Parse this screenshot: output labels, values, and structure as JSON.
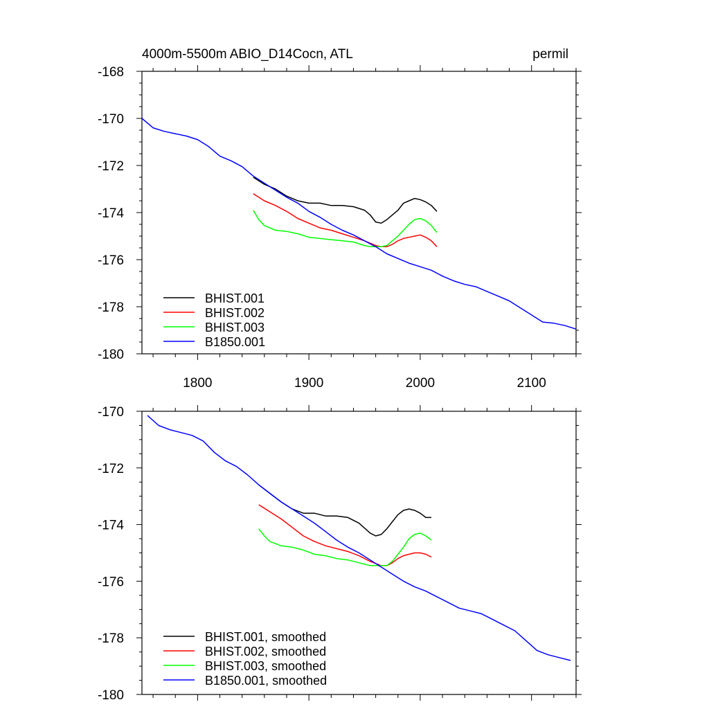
{
  "figure": {
    "title_left": "4000m-5500m ABIO_D14Cocn, ATL",
    "title_right": "permil"
  },
  "chart_data": [
    {
      "type": "line",
      "title": "4000m-5500m ABIO_D14Cocn, ATL",
      "units": "permil",
      "xlim": [
        1750,
        2140
      ],
      "ylim": [
        -180,
        -168
      ],
      "xticks": [
        1800,
        1900,
        2000,
        2100
      ],
      "xtick_labels": [
        "1800",
        "1900",
        "2000",
        "2100"
      ],
      "yticks": [
        -180,
        -178,
        -176,
        -174,
        -172,
        -170,
        -168
      ],
      "ytick_labels": [
        "-180",
        "-178",
        "-176",
        "-174",
        "-172",
        "-170",
        "-168"
      ],
      "legend_location": "bottom-left",
      "series": [
        {
          "name": "BHIST.001",
          "color": "#000000",
          "x": [
            1850,
            1860,
            1870,
            1880,
            1890,
            1900,
            1910,
            1920,
            1930,
            1940,
            1950,
            1955,
            1960,
            1965,
            1970,
            1975,
            1980,
            1985,
            1990,
            1995,
            2000,
            2005,
            2010,
            2015
          ],
          "y": [
            -172.5,
            -172.8,
            -173.0,
            -173.3,
            -173.5,
            -173.6,
            -173.6,
            -173.7,
            -173.7,
            -173.75,
            -173.9,
            -174.1,
            -174.4,
            -174.45,
            -174.3,
            -174.1,
            -173.9,
            -173.6,
            -173.5,
            -173.4,
            -173.45,
            -173.55,
            -173.7,
            -173.95
          ]
        },
        {
          "name": "BHIST.002",
          "color": "#ff0000",
          "x": [
            1850,
            1860,
            1870,
            1880,
            1890,
            1900,
            1910,
            1920,
            1930,
            1940,
            1950,
            1955,
            1960,
            1965,
            1970,
            1975,
            1980,
            1985,
            1990,
            1995,
            2000,
            2005,
            2010,
            2015
          ],
          "y": [
            -173.2,
            -173.5,
            -173.7,
            -173.95,
            -174.25,
            -174.45,
            -174.65,
            -174.75,
            -174.9,
            -175.05,
            -175.2,
            -175.3,
            -175.4,
            -175.45,
            -175.45,
            -175.35,
            -175.2,
            -175.1,
            -175.05,
            -175.0,
            -174.95,
            -175.05,
            -175.2,
            -175.45
          ]
        },
        {
          "name": "BHIST.003",
          "color": "#00ff00",
          "x": [
            1850,
            1855,
            1860,
            1870,
            1880,
            1890,
            1900,
            1910,
            1920,
            1930,
            1940,
            1950,
            1955,
            1960,
            1965,
            1970,
            1975,
            1980,
            1985,
            1990,
            1995,
            2000,
            2005,
            2010,
            2015
          ],
          "y": [
            -173.9,
            -174.3,
            -174.55,
            -174.75,
            -174.8,
            -174.9,
            -175.05,
            -175.1,
            -175.15,
            -175.2,
            -175.25,
            -175.4,
            -175.45,
            -175.45,
            -175.45,
            -175.4,
            -175.2,
            -175.0,
            -174.75,
            -174.5,
            -174.3,
            -174.25,
            -174.35,
            -174.55,
            -174.85
          ]
        },
        {
          "name": "B1850.001",
          "color": "#0000ff",
          "x": [
            1750,
            1760,
            1770,
            1780,
            1790,
            1800,
            1810,
            1820,
            1830,
            1840,
            1850,
            1860,
            1870,
            1880,
            1890,
            1900,
            1910,
            1920,
            1930,
            1940,
            1950,
            1960,
            1970,
            1980,
            1990,
            2000,
            2010,
            2020,
            2030,
            2040,
            2050,
            2060,
            2070,
            2080,
            2090,
            2100,
            2110,
            2120,
            2130,
            2140
          ],
          "y": [
            -170.0,
            -170.4,
            -170.55,
            -170.65,
            -170.75,
            -170.9,
            -171.2,
            -171.6,
            -171.8,
            -172.05,
            -172.45,
            -172.75,
            -173.05,
            -173.35,
            -173.6,
            -173.95,
            -174.2,
            -174.5,
            -174.75,
            -174.95,
            -175.2,
            -175.45,
            -175.75,
            -175.95,
            -176.15,
            -176.3,
            -176.45,
            -176.7,
            -176.9,
            -177.05,
            -177.15,
            -177.35,
            -177.55,
            -177.75,
            -178.05,
            -178.35,
            -178.65,
            -178.7,
            -178.8,
            -178.95
          ]
        }
      ]
    },
    {
      "type": "line",
      "title": "",
      "xlim": [
        1750,
        2140
      ],
      "ylim": [
        -180,
        -170
      ],
      "xticks": [
        1800,
        1900,
        2000,
        2100
      ],
      "xtick_labels": [],
      "yticks": [
        -180,
        -178,
        -176,
        -174,
        -172,
        -170
      ],
      "ytick_labels": [
        "-180",
        "-178",
        "-176",
        "-174",
        "-172",
        "-170"
      ],
      "legend_location": "bottom-left",
      "series": [
        {
          "name": "BHIST.001, smoothed",
          "color": "#000000",
          "x": [
            1855,
            1865,
            1875,
            1885,
            1895,
            1905,
            1915,
            1925,
            1935,
            1945,
            1955,
            1960,
            1965,
            1970,
            1975,
            1980,
            1985,
            1990,
            1995,
            2000,
            2005,
            2010
          ],
          "y": [
            -172.6,
            -172.9,
            -173.2,
            -173.45,
            -173.6,
            -173.6,
            -173.7,
            -173.7,
            -173.75,
            -173.95,
            -174.3,
            -174.4,
            -174.35,
            -174.15,
            -173.9,
            -173.65,
            -173.5,
            -173.45,
            -173.5,
            -173.6,
            -173.75,
            -173.75
          ]
        },
        {
          "name": "BHIST.002, smoothed",
          "color": "#ff0000",
          "x": [
            1855,
            1865,
            1875,
            1885,
            1895,
            1905,
            1915,
            1925,
            1935,
            1945,
            1955,
            1965,
            1970,
            1975,
            1980,
            1985,
            1990,
            1995,
            2000,
            2005,
            2010
          ],
          "y": [
            -173.3,
            -173.55,
            -173.8,
            -174.1,
            -174.4,
            -174.6,
            -174.75,
            -174.85,
            -174.95,
            -175.1,
            -175.3,
            -175.45,
            -175.45,
            -175.35,
            -175.2,
            -175.1,
            -175.05,
            -175.0,
            -175.0,
            -175.05,
            -175.15
          ]
        },
        {
          "name": "BHIST.003, smoothed",
          "color": "#00ff00",
          "x": [
            1855,
            1860,
            1865,
            1875,
            1885,
            1895,
            1905,
            1915,
            1925,
            1935,
            1945,
            1955,
            1965,
            1970,
            1975,
            1980,
            1985,
            1990,
            1995,
            2000,
            2005,
            2010
          ],
          "y": [
            -174.15,
            -174.4,
            -174.6,
            -174.75,
            -174.8,
            -174.9,
            -175.05,
            -175.1,
            -175.2,
            -175.25,
            -175.35,
            -175.45,
            -175.45,
            -175.45,
            -175.3,
            -175.05,
            -174.8,
            -174.5,
            -174.35,
            -174.3,
            -174.4,
            -174.55
          ]
        },
        {
          "name": "B1850.001, smoothed",
          "color": "#0000ff",
          "x": [
            1755,
            1765,
            1775,
            1785,
            1795,
            1805,
            1815,
            1825,
            1835,
            1845,
            1855,
            1865,
            1875,
            1885,
            1895,
            1905,
            1915,
            1925,
            1935,
            1945,
            1955,
            1965,
            1975,
            1985,
            1995,
            2005,
            2015,
            2025,
            2035,
            2045,
            2055,
            2065,
            2075,
            2085,
            2095,
            2105,
            2115,
            2125,
            2135
          ],
          "y": [
            -170.15,
            -170.5,
            -170.65,
            -170.75,
            -170.85,
            -171.05,
            -171.45,
            -171.75,
            -171.95,
            -172.25,
            -172.6,
            -172.9,
            -173.2,
            -173.45,
            -173.7,
            -173.95,
            -174.25,
            -174.55,
            -174.8,
            -175.0,
            -175.25,
            -175.5,
            -175.75,
            -176.0,
            -176.2,
            -176.35,
            -176.55,
            -176.75,
            -176.95,
            -177.05,
            -177.15,
            -177.35,
            -177.55,
            -177.75,
            -178.1,
            -178.45,
            -178.6,
            -178.7,
            -178.8
          ]
        }
      ]
    }
  ]
}
